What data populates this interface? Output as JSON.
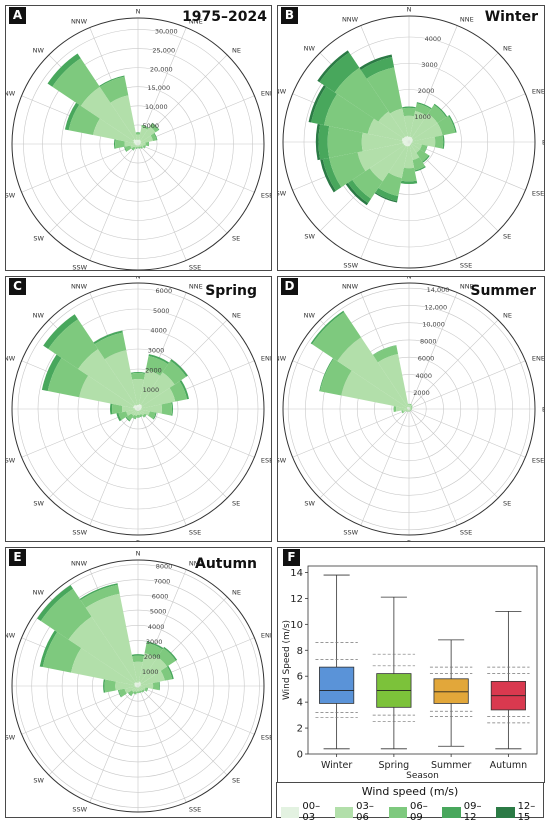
{
  "colors": {
    "bins": [
      "#e3f2e1",
      "#b2dfaa",
      "#7ec97e",
      "#48a75c",
      "#2b7a45"
    ],
    "boxes": [
      "#5a93d8",
      "#7cc23a",
      "#e2a73a",
      "#d9394f"
    ],
    "grid": "#c8c8c8",
    "axis": "#333333"
  },
  "directions": [
    "N",
    "NNE",
    "NE",
    "ENE",
    "E",
    "ESE",
    "SE",
    "SSE",
    "S",
    "SSW",
    "SW",
    "WSW",
    "W",
    "WNW",
    "NW",
    "NNW"
  ],
  "panels": [
    {
      "letter": "A",
      "title": "1975–2024"
    },
    {
      "letter": "B",
      "title": "Winter"
    },
    {
      "letter": "C",
      "title": "Spring"
    },
    {
      "letter": "D",
      "title": "Summer"
    },
    {
      "letter": "E",
      "title": "Autumn"
    },
    {
      "letter": "F",
      "title": ""
    }
  ],
  "legend": {
    "title": "Wind speed (m/s)",
    "items": [
      "00–03",
      "03–06",
      "06–09",
      "09–12",
      "12–15"
    ]
  },
  "chart_data": [
    {
      "type": "wind_rose",
      "panel": "A",
      "title": "1975–2024",
      "rmax": 33000,
      "rticks": [
        5000,
        10000,
        15000,
        20000,
        25000,
        30000
      ],
      "rtick_labels": [
        "5000",
        "10,000",
        "15,000",
        "20,000",
        "25,000",
        "30,000"
      ],
      "bins": [
        "00–03",
        "03–06",
        "06–09",
        "09–12",
        "12–15"
      ],
      "cumulative_by_direction": {
        "N": [
          1000,
          2500,
          3000,
          3100,
          3100
        ],
        "NNE": [
          1200,
          4500,
          5000,
          5100,
          5100
        ],
        "NE": [
          1000,
          5500,
          6500,
          6700,
          6700
        ],
        "ENE": [
          800,
          4000,
          5000,
          5200,
          5200
        ],
        "E": [
          600,
          2000,
          2800,
          2900,
          2900
        ],
        "ESE": [
          500,
          1500,
          2000,
          2100,
          2100
        ],
        "SE": [
          400,
          1000,
          1500,
          1550,
          1550
        ],
        "SSE": [
          400,
          800,
          1200,
          1250,
          1250
        ],
        "S": [
          400,
          800,
          1100,
          1150,
          1150
        ],
        "SSW": [
          400,
          900,
          1300,
          1350,
          1350
        ],
        "SW": [
          500,
          1200,
          2000,
          2100,
          2100
        ],
        "WSW": [
          600,
          2000,
          3500,
          3700,
          3700
        ],
        "W": [
          800,
          3500,
          6000,
          6300,
          6300
        ],
        "WNW": [
          1200,
          12000,
          18500,
          19500,
          19500
        ],
        "NW": [
          1500,
          18000,
          27000,
          28500,
          28500
        ],
        "NNW": [
          1200,
          13000,
          18000,
          18300,
          18300
        ]
      }
    },
    {
      "type": "wind_rose",
      "panel": "B",
      "title": "Winter",
      "rmax": 4800,
      "rticks": [
        1000,
        2000,
        3000,
        4000
      ],
      "rtick_labels": [
        "1000",
        "2000",
        "3000",
        "4000"
      ],
      "bins": [
        "00–03",
        "03–06",
        "06–09",
        "09–12",
        "12–15"
      ],
      "cumulative_by_direction": {
        "N": [
          200,
          1000,
          1300,
          1350,
          1350
        ],
        "NNE": [
          200,
          1200,
          1500,
          1550,
          1550
        ],
        "NE": [
          180,
          1300,
          1700,
          1750,
          1750
        ],
        "ENE": [
          150,
          1300,
          1800,
          1850,
          1850
        ],
        "E": [
          120,
          1000,
          1300,
          1350,
          1350
        ],
        "ESE": [
          100,
          500,
          700,
          720,
          720
        ],
        "SE": [
          100,
          500,
          900,
          950,
          950
        ],
        "SSE": [
          120,
          700,
          1100,
          1150,
          1150
        ],
        "S": [
          150,
          1000,
          1500,
          1600,
          1600
        ],
        "SSW": [
          180,
          1400,
          2100,
          2300,
          2350
        ],
        "SW": [
          200,
          1800,
          2600,
          2800,
          2900
        ],
        "WSW": [
          220,
          2000,
          3100,
          3350,
          3450
        ],
        "W": [
          250,
          1800,
          3100,
          3450,
          3550
        ],
        "WNW": [
          280,
          1600,
          3300,
          3800,
          3900
        ],
        "NW": [
          250,
          1400,
          3400,
          4100,
          4200
        ],
        "NNW": [
          230,
          1300,
          2900,
          3300,
          3400
        ]
      }
    },
    {
      "type": "wind_rose",
      "panel": "C",
      "title": "Spring",
      "rmax": 6300,
      "rticks": [
        1000,
        2000,
        3000,
        4000,
        5000,
        6000
      ],
      "rtick_labels": [
        "1000",
        "2000",
        "3000",
        "4000",
        "5000",
        "6000"
      ],
      "bins": [
        "00–03",
        "03–06",
        "06–09",
        "09–12",
        "12–15"
      ],
      "cumulative_by_direction": {
        "N": [
          200,
          1500,
          1800,
          1850,
          1850
        ],
        "NNE": [
          250,
          2000,
          2700,
          2800,
          2800
        ],
        "NE": [
          250,
          2200,
          2900,
          3000,
          3000
        ],
        "ENE": [
          200,
          1900,
          2500,
          2600,
          2600
        ],
        "E": [
          150,
          1200,
          1700,
          1750,
          1750
        ],
        "ESE": [
          120,
          600,
          900,
          950,
          950
        ],
        "SE": [
          100,
          400,
          500,
          520,
          520
        ],
        "SSE": [
          100,
          300,
          400,
          420,
          420
        ],
        "S": [
          100,
          300,
          420,
          440,
          440
        ],
        "SSW": [
          100,
          350,
          500,
          520,
          520
        ],
        "SW": [
          100,
          400,
          700,
          750,
          750
        ],
        "WSW": [
          120,
          600,
          1000,
          1100,
          1100
        ],
        "W": [
          150,
          800,
          1300,
          1400,
          1400
        ],
        "WNW": [
          250,
          3000,
          4600,
          4900,
          4900
        ],
        "NW": [
          250,
          3600,
          5400,
          5700,
          5700
        ],
        "NNW": [
          200,
          3000,
          3900,
          4000,
          4000
        ]
      }
    },
    {
      "type": "wind_rose",
      "panel": "D",
      "title": "Summer",
      "rmax": 14600,
      "rticks": [
        2000,
        4000,
        6000,
        8000,
        10000,
        12000,
        14000
      ],
      "rtick_labels": [
        "2000",
        "4000",
        "6000",
        "8000",
        "10,000",
        "12,000",
        "14,000"
      ],
      "bins": [
        "00–03",
        "03–06",
        "06–09",
        "09–12",
        "12–15"
      ],
      "cumulative_by_direction": {
        "N": [
          200,
          500,
          600,
          600,
          600
        ],
        "NNE": [
          200,
          500,
          600,
          600,
          600
        ],
        "NE": [
          150,
          400,
          500,
          500,
          500
        ],
        "ENE": [
          100,
          300,
          400,
          400,
          400
        ],
        "E": [
          100,
          300,
          350,
          350,
          350
        ],
        "ESE": [
          100,
          250,
          300,
          300,
          300
        ],
        "SE": [
          100,
          250,
          300,
          300,
          300
        ],
        "SSE": [
          100,
          250,
          300,
          300,
          300
        ],
        "S": [
          100,
          250,
          300,
          300,
          300
        ],
        "SSW": [
          100,
          250,
          300,
          300,
          300
        ],
        "SW": [
          120,
          300,
          400,
          400,
          400
        ],
        "WSW": [
          150,
          700,
          900,
          900,
          900
        ],
        "W": [
          150,
          1500,
          1800,
          1800,
          1800
        ],
        "WNW": [
          250,
          8000,
          10500,
          10600,
          10600
        ],
        "NW": [
          300,
          10000,
          13500,
          13700,
          13700
        ],
        "NNW": [
          250,
          6500,
          7500,
          7550,
          7550
        ]
      }
    },
    {
      "type": "wind_rose",
      "panel": "E",
      "title": "Autumn",
      "rmax": 8300,
      "rticks": [
        1000,
        2000,
        3000,
        4000,
        5000,
        6000,
        7000,
        8000
      ],
      "rtick_labels": [
        "1000",
        "2000",
        "3000",
        "4000",
        "5000",
        "6000",
        "7000",
        "8000"
      ],
      "bins": [
        "00–03",
        "03–06",
        "06–09",
        "09–12",
        "12–15"
      ],
      "cumulative_by_direction": {
        "N": [
          200,
          1600,
          2000,
          2100,
          2100
        ],
        "NNE": [
          300,
          2200,
          2900,
          3000,
          3000
        ],
        "NE": [
          250,
          2300,
          3000,
          3100,
          3100
        ],
        "ENE": [
          200,
          1800,
          2300,
          2400,
          2400
        ],
        "E": [
          150,
          1000,
          1400,
          1450,
          1450
        ],
        "ESE": [
          100,
          500,
          650,
          680,
          680
        ],
        "SE": [
          100,
          400,
          500,
          520,
          520
        ],
        "SSE": [
          100,
          350,
          450,
          470,
          470
        ],
        "S": [
          100,
          350,
          450,
          470,
          470
        ],
        "SSW": [
          100,
          400,
          550,
          570,
          570
        ],
        "SW": [
          120,
          500,
          750,
          800,
          800
        ],
        "WSW": [
          150,
          900,
          1300,
          1350,
          1350
        ],
        "W": [
          200,
          1500,
          2200,
          2300,
          2300
        ],
        "WNW": [
          250,
          4500,
          6400,
          6600,
          6600
        ],
        "NW": [
          300,
          5500,
          7700,
          8000,
          8000
        ],
        "NNW": [
          250,
          6200,
          6800,
          6900,
          6900
        ]
      }
    },
    {
      "type": "box",
      "panel": "F",
      "xlabel": "Season",
      "ylabel": "Wind Speed (m/s)",
      "ylim": [
        0,
        14.5
      ],
      "yticks": [
        0,
        2,
        4,
        6,
        8,
        10,
        12,
        14
      ],
      "categories": [
        "Winter",
        "Spring",
        "Summer",
        "Autumn"
      ],
      "boxes": [
        {
          "name": "Winter",
          "min": 0.4,
          "q1": 3.9,
          "median": 4.9,
          "q3": 6.7,
          "max": 13.8,
          "dashed": [
            2.8,
            3.2,
            7.3,
            8.6
          ]
        },
        {
          "name": "Spring",
          "min": 0.4,
          "q1": 3.6,
          "median": 4.9,
          "q3": 6.2,
          "max": 12.1,
          "dashed": [
            2.5,
            3.0,
            6.8,
            7.7
          ]
        },
        {
          "name": "Summer",
          "min": 0.6,
          "q1": 3.9,
          "median": 4.8,
          "q3": 5.8,
          "max": 8.8,
          "dashed": [
            2.9,
            3.3,
            6.2,
            6.7
          ]
        },
        {
          "name": "Autumn",
          "min": 0.4,
          "q1": 3.4,
          "median": 4.5,
          "q3": 5.6,
          "max": 11.0,
          "dashed": [
            2.4,
            2.9,
            6.2,
            6.7
          ]
        }
      ]
    }
  ]
}
